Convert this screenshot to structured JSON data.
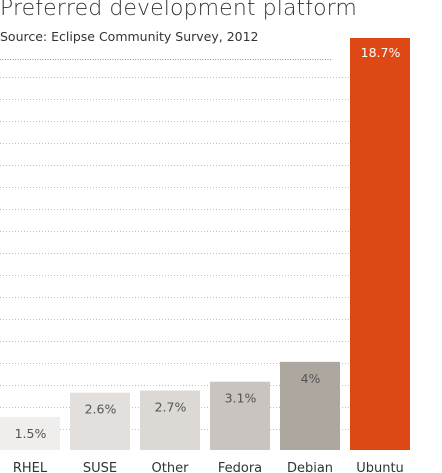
{
  "chart_data": {
    "type": "bar",
    "title": "Preferred development platform",
    "subtitle": "Source: Eclipse Community Survey, 2012",
    "categories": [
      "RHEL",
      "SUSE",
      "Other",
      "Fedora",
      "Debian",
      "Ubuntu"
    ],
    "values": [
      1.5,
      2.6,
      2.7,
      3.1,
      4,
      18.7
    ],
    "value_labels": [
      "1.5%",
      "2.6%",
      "2.7%",
      "3.1%",
      "4%",
      "18.7%"
    ],
    "ylim": [
      0,
      18.7
    ],
    "grid": true,
    "legend": "none",
    "colors": {
      "bars": [
        "#efeeec",
        "#e2dfdc",
        "#dcd8d4",
        "#c9c4bf",
        "#aea7a0",
        "#dd4814"
      ],
      "labels": [
        "#555555",
        "#555555",
        "#555555",
        "#555555",
        "#555555",
        "#ffffff"
      ],
      "grid": "#aaaaaa",
      "reference_line": "#dd4814"
    }
  }
}
